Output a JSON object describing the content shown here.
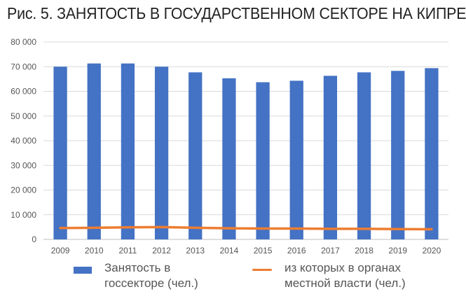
{
  "title": "Рис. 5. ЗАНЯТОСТЬ В ГОСУДАРСТВЕННОМ СЕКТОРЕ НА КИПРЕ",
  "colors": {
    "bar": "#4472C4",
    "line": "#ED7D31",
    "grid": "#d9d9d9",
    "text": "#555555"
  },
  "chart_data": {
    "type": "bar",
    "categories": [
      "2009",
      "2010",
      "2011",
      "2012",
      "2013",
      "2014",
      "2015",
      "2016",
      "2017",
      "2018",
      "2019",
      "2020"
    ],
    "ylim": [
      0,
      80000
    ],
    "yticks": [
      0,
      10000,
      20000,
      30000,
      40000,
      50000,
      60000,
      70000,
      80000
    ],
    "ytick_labels": [
      "0",
      "10 000",
      "20 000",
      "30 000",
      "40 000",
      "50 000",
      "60 000",
      "70 000",
      "80 000"
    ],
    "grid": true,
    "legend_position": "bottom",
    "series": [
      {
        "name": "Занятость в госсекторе (чел.)",
        "type": "bar",
        "values": [
          70000,
          71300,
          71300,
          70000,
          67700,
          65300,
          63700,
          64300,
          66300,
          67700,
          68300,
          69400
        ]
      },
      {
        "name": "из которых в органах местной власти (чел.)",
        "type": "line",
        "values": [
          4600,
          4700,
          4900,
          5000,
          4700,
          4500,
          4400,
          4400,
          4300,
          4300,
          4200,
          4100
        ]
      }
    ],
    "legend": [
      {
        "line1": "Занятость в",
        "line2": "госсекторе (чел.)"
      },
      {
        "line1": "из которых в органах",
        "line2": "местной власти (чел.)"
      }
    ]
  }
}
